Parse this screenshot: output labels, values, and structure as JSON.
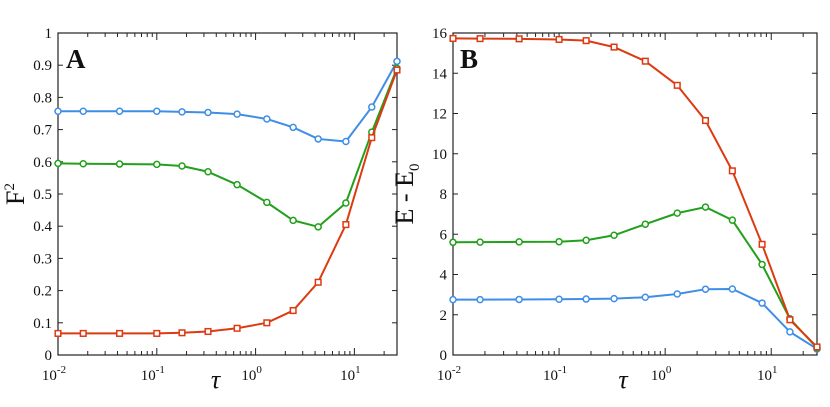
{
  "colors": {
    "blue": "#3e8ee8",
    "green": "#22a01c",
    "red": "#dd3a12"
  },
  "chart_data": [
    {
      "type": "line",
      "panel": "A",
      "xlabel": "τ",
      "ylabel": "F",
      "ylabel_sup": "2",
      "xscale": "log",
      "xlim": [
        0.01,
        27
      ],
      "ylim": [
        0,
        1
      ],
      "xticks": [
        {
          "value": 0.01,
          "base": "10",
          "exp": "-2"
        },
        {
          "value": 0.1,
          "base": "10",
          "exp": "-1"
        },
        {
          "value": 1,
          "base": "10",
          "exp": "0"
        },
        {
          "value": 10,
          "base": "10",
          "exp": "1"
        }
      ],
      "yticks": [
        {
          "value": 0,
          "label": "0"
        },
        {
          "value": 0.1,
          "label": "0.1"
        },
        {
          "value": 0.2,
          "label": "0.2"
        },
        {
          "value": 0.3,
          "label": "0.3"
        },
        {
          "value": 0.4,
          "label": "0.4"
        },
        {
          "value": 0.5,
          "label": "0.5"
        },
        {
          "value": 0.6,
          "label": "0.6"
        },
        {
          "value": 0.7,
          "label": "0.7"
        },
        {
          "value": 0.8,
          "label": "0.8"
        },
        {
          "value": 0.9,
          "label": "0.9"
        },
        {
          "value": 1,
          "label": "1"
        }
      ],
      "x": [
        0.01,
        0.018,
        0.042,
        0.1,
        0.18,
        0.33,
        0.65,
        1.3,
        2.4,
        4.3,
        8.2,
        15,
        27
      ],
      "series": [
        {
          "name": "blue",
          "color": "#3e8ee8",
          "marker": "circle",
          "values": [
            0.757,
            0.757,
            0.757,
            0.757,
            0.755,
            0.753,
            0.748,
            0.733,
            0.707,
            0.671,
            0.663,
            0.77,
            0.912
          ]
        },
        {
          "name": "green",
          "color": "#22a01c",
          "marker": "circle",
          "values": [
            0.595,
            0.594,
            0.593,
            0.592,
            0.587,
            0.569,
            0.529,
            0.474,
            0.418,
            0.398,
            0.472,
            0.692,
            0.89
          ]
        },
        {
          "name": "red",
          "color": "#dd3a12",
          "marker": "square",
          "values": [
            0.067,
            0.067,
            0.067,
            0.067,
            0.069,
            0.073,
            0.083,
            0.1,
            0.138,
            0.226,
            0.405,
            0.675,
            0.885
          ]
        }
      ]
    },
    {
      "type": "line",
      "panel": "B",
      "xlabel": "τ",
      "ylabel": "E - E",
      "ylabel_sub": "0",
      "xscale": "log",
      "xlim": [
        0.01,
        27
      ],
      "ylim": [
        0,
        16
      ],
      "xticks": [
        {
          "value": 0.01,
          "base": "10",
          "exp": "-2"
        },
        {
          "value": 0.1,
          "base": "10",
          "exp": "-1"
        },
        {
          "value": 1,
          "base": "10",
          "exp": "0"
        },
        {
          "value": 10,
          "base": "10",
          "exp": "1"
        }
      ],
      "yticks": [
        {
          "value": 0,
          "label": "0"
        },
        {
          "value": 2,
          "label": "2"
        },
        {
          "value": 4,
          "label": "4"
        },
        {
          "value": 6,
          "label": "6"
        },
        {
          "value": 8,
          "label": "8"
        },
        {
          "value": 10,
          "label": "10"
        },
        {
          "value": 12,
          "label": "12"
        },
        {
          "value": 14,
          "label": "14"
        },
        {
          "value": 16,
          "label": "16"
        }
      ],
      "x": [
        0.01,
        0.018,
        0.042,
        0.1,
        0.18,
        0.33,
        0.65,
        1.3,
        2.4,
        4.3,
        8.2,
        15,
        27
      ],
      "series": [
        {
          "name": "blue",
          "color": "#3e8ee8",
          "marker": "circle",
          "values": [
            2.75,
            2.75,
            2.76,
            2.77,
            2.78,
            2.8,
            2.87,
            3.03,
            3.27,
            3.28,
            2.58,
            1.15,
            0.3
          ]
        },
        {
          "name": "green",
          "color": "#22a01c",
          "marker": "circle",
          "values": [
            5.6,
            5.61,
            5.62,
            5.63,
            5.7,
            5.95,
            6.5,
            7.05,
            7.35,
            6.7,
            4.5,
            1.8,
            0.35
          ]
        },
        {
          "name": "red",
          "color": "#dd3a12",
          "marker": "square",
          "values": [
            15.73,
            15.72,
            15.71,
            15.68,
            15.62,
            15.3,
            14.6,
            13.4,
            11.65,
            9.15,
            5.5,
            1.75,
            0.4
          ]
        }
      ]
    }
  ]
}
